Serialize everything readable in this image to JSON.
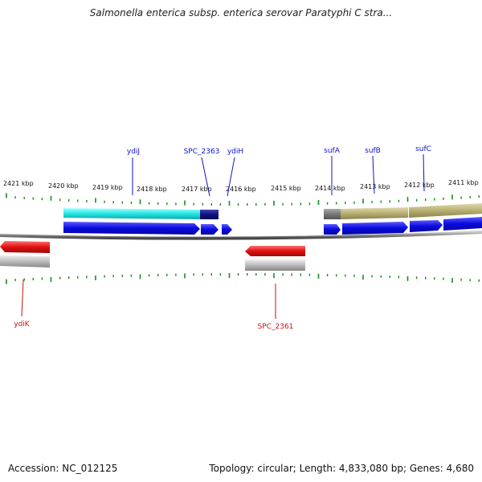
{
  "title": "Salmonella enterica subsp. enterica serovar Paratyphi C stra...",
  "footer": {
    "accession": "Accession: NC_012125",
    "topology": "Topology: circular; Length: 4,833,080 bp; Genes: 4,680"
  },
  "kbp_labels": [
    "2421 kbp",
    "2420 kbp",
    "2419 kbp",
    "2418 kbp",
    "2417 kbp",
    "2416 kbp",
    "2415 kbp",
    "2414 kbp",
    "2413 kbp",
    "2412 kbp",
    "2411 kbp"
  ],
  "gene_labels_top": [
    "ydiJ",
    "SPC_2363",
    "ydiH",
    "sufA",
    "sufB",
    "sufC"
  ],
  "gene_labels_bottom": [
    "ydiK",
    "SPC_2361"
  ],
  "colors": {
    "forward_gene": "#0a0ae0",
    "reverse_gene": "#e01010",
    "cog_cyan": "#22e6e6",
    "cog_navy": "#101080",
    "cog_olive": "#b8b070",
    "cog_gray": "#777777",
    "tick": "#1a8a1a",
    "backbone": "#888888"
  }
}
